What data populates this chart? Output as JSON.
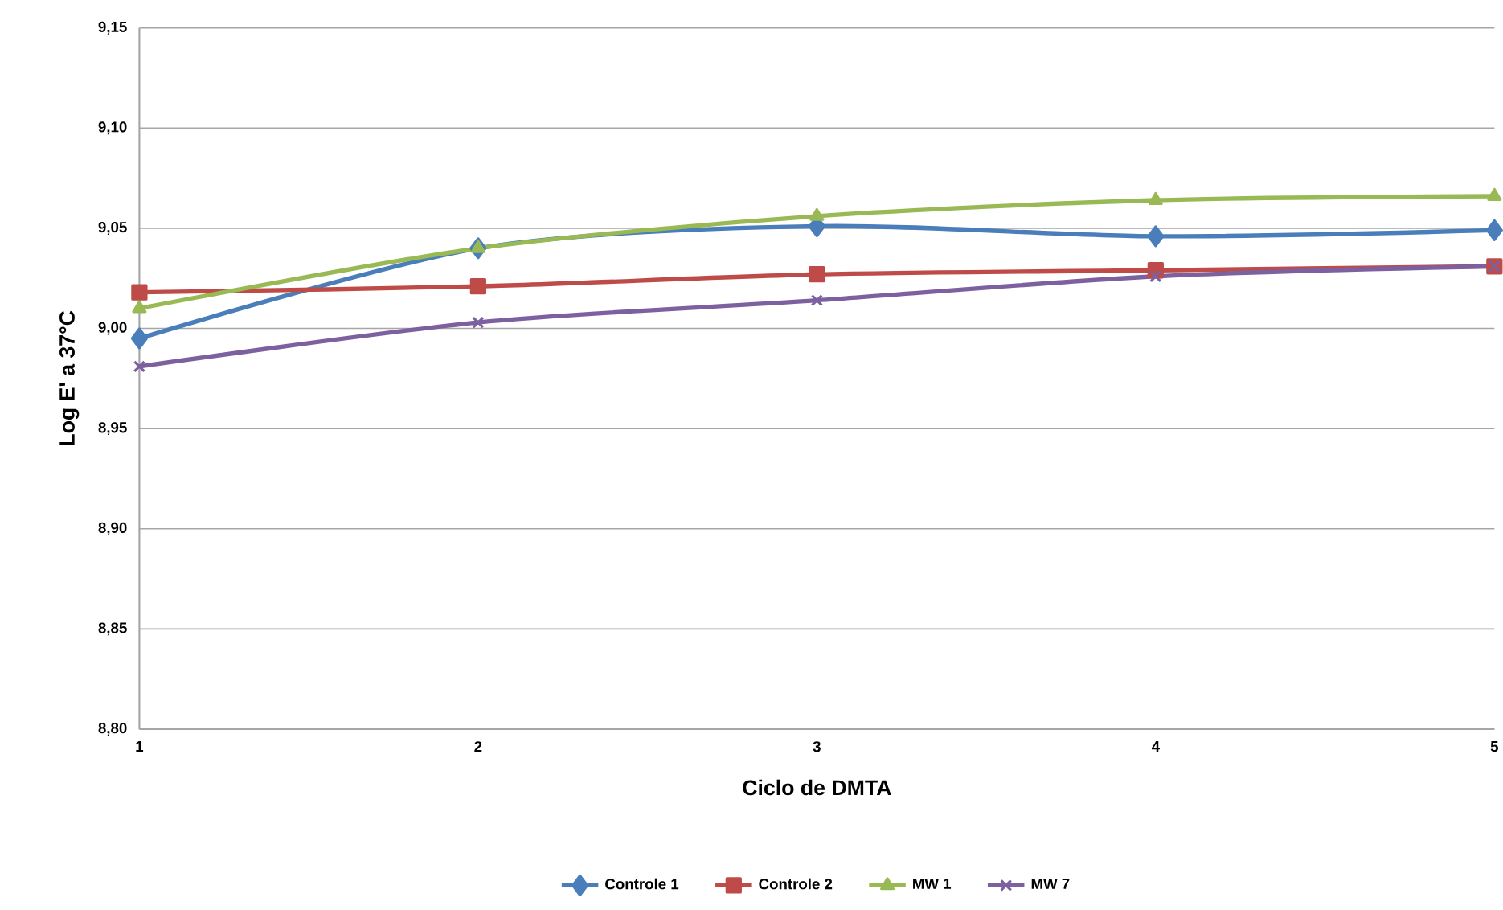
{
  "chart_data": {
    "type": "line",
    "xlabel": "Ciclo de DMTA",
    "ylabel": "Log E' a 37°C",
    "x": [
      1,
      2,
      3,
      4,
      5
    ],
    "series": [
      {
        "name": "Controle 1",
        "color": "#4a7ebb",
        "marker": "diamond",
        "values": [
          8.995,
          9.04,
          9.051,
          9.046,
          9.049
        ]
      },
      {
        "name": "Controle 2",
        "color": "#be4b48",
        "marker": "square",
        "values": [
          9.018,
          9.021,
          9.027,
          9.029,
          9.031
        ]
      },
      {
        "name": "MW 1",
        "color": "#98b954",
        "marker": "triangle",
        "values": [
          9.01,
          9.04,
          9.056,
          9.064,
          9.066
        ]
      },
      {
        "name": "MW 7",
        "color": "#7d60a0",
        "marker": "cross",
        "values": [
          8.981,
          9.003,
          9.014,
          9.026,
          9.031
        ]
      }
    ],
    "xlim": [
      1,
      5
    ],
    "xticks": [
      1,
      2,
      3,
      4,
      5
    ],
    "ylim": [
      8.8,
      9.15
    ],
    "yticks": [
      {
        "value": 8.8,
        "label": "8,80"
      },
      {
        "value": 8.85,
        "label": "8,85"
      },
      {
        "value": 8.9,
        "label": "8,90"
      },
      {
        "value": 8.95,
        "label": "8,95"
      },
      {
        "value": 9.0,
        "label": "9,00"
      },
      {
        "value": 9.05,
        "label": "9,05"
      },
      {
        "value": 9.1,
        "label": "9,10"
      },
      {
        "value": 9.15,
        "label": "9,15"
      }
    ],
    "grid": "y",
    "legend": "bottom",
    "line_style": "solid"
  }
}
